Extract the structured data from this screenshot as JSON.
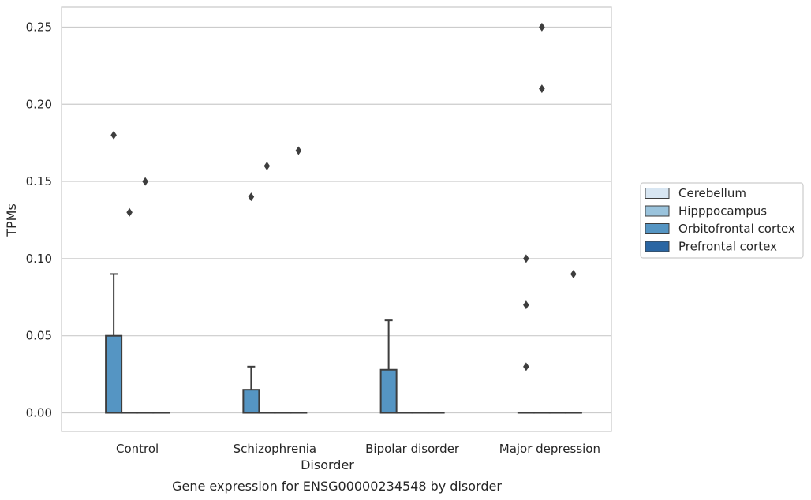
{
  "chart_data": {
    "type": "boxplot",
    "title": "Gene expression for ENSG00000234548 by disorder",
    "xlabel": "Disorder",
    "ylabel": "TPMs",
    "ylim": [
      -0.012,
      0.263
    ],
    "yticks": [
      0.0,
      0.05,
      0.1,
      0.15,
      0.2,
      0.25
    ],
    "ytick_labels": [
      "0.00",
      "0.05",
      "0.10",
      "0.15",
      "0.20",
      "0.25"
    ],
    "grid": "horizontal",
    "legend_position": "right",
    "categories": [
      "Control",
      "Schizophrenia",
      "Bipolar disorder",
      "Major depression"
    ],
    "series": [
      {
        "name": "Cerebellum",
        "color": "#d8e6f2",
        "boxes": [
          {
            "category": "Control",
            "q1": 0,
            "median": 0,
            "q3": 0,
            "whisker_low": 0,
            "whisker_high": 0,
            "outliers": []
          },
          {
            "category": "Schizophrenia",
            "q1": 0,
            "median": 0,
            "q3": 0,
            "whisker_low": 0,
            "whisker_high": 0,
            "outliers": [
              0.17
            ]
          },
          {
            "category": "Bipolar disorder",
            "q1": 0,
            "median": 0,
            "q3": 0,
            "whisker_low": 0,
            "whisker_high": 0,
            "outliers": []
          },
          {
            "category": "Major depression",
            "q1": 0,
            "median": 0,
            "q3": 0,
            "whisker_low": 0,
            "whisker_high": 0,
            "outliers": [
              0.09
            ]
          }
        ]
      },
      {
        "name": "Hipppocampus",
        "color": "#9ac3dc",
        "boxes": [
          {
            "category": "Control",
            "q1": 0,
            "median": 0,
            "q3": 0,
            "whisker_low": 0,
            "whisker_high": 0,
            "outliers": [
              0.13
            ]
          },
          {
            "category": "Schizophrenia",
            "q1": 0,
            "median": 0,
            "q3": 0,
            "whisker_low": 0,
            "whisker_high": 0,
            "outliers": [
              0.16
            ]
          },
          {
            "category": "Bipolar disorder",
            "q1": 0,
            "median": 0,
            "q3": 0,
            "whisker_low": 0,
            "whisker_high": 0,
            "outliers": []
          },
          {
            "category": "Major depression",
            "q1": 0,
            "median": 0,
            "q3": 0,
            "whisker_low": 0,
            "whisker_high": 0,
            "outliers": [
              0.25,
              0.21
            ]
          }
        ]
      },
      {
        "name": "Orbitofrontal cortex",
        "color": "#5595c3",
        "boxes": [
          {
            "category": "Control",
            "q1": 0,
            "median": 0,
            "q3": 0.05,
            "whisker_low": 0,
            "whisker_high": 0.09,
            "outliers": [
              0.18
            ]
          },
          {
            "category": "Schizophrenia",
            "q1": 0,
            "median": 0,
            "q3": 0.015,
            "whisker_low": 0,
            "whisker_high": 0.03,
            "outliers": [
              0.14
            ]
          },
          {
            "category": "Bipolar disorder",
            "q1": 0,
            "median": 0,
            "q3": 0.028,
            "whisker_low": 0,
            "whisker_high": 0.06,
            "outliers": []
          },
          {
            "category": "Major depression",
            "q1": 0,
            "median": 0,
            "q3": 0,
            "whisker_low": 0,
            "whisker_high": 0,
            "outliers": [
              0.1,
              0.07,
              0.03
            ]
          }
        ]
      },
      {
        "name": "Prefrontal cortex",
        "color": "#2a66a3",
        "boxes": [
          {
            "category": "Control",
            "q1": 0,
            "median": 0,
            "q3": 0,
            "whisker_low": 0,
            "whisker_high": 0,
            "outliers": [
              0.15
            ]
          },
          {
            "category": "Schizophrenia",
            "q1": 0,
            "median": 0,
            "q3": 0,
            "whisker_low": 0,
            "whisker_high": 0,
            "outliers": []
          },
          {
            "category": "Bipolar disorder",
            "q1": 0,
            "median": 0,
            "q3": 0,
            "whisker_low": 0,
            "whisker_high": 0,
            "outliers": []
          },
          {
            "category": "Major depression",
            "q1": 0,
            "median": 0,
            "q3": 0,
            "whisker_low": 0,
            "whisker_high": 0,
            "outliers": []
          }
        ]
      }
    ],
    "hue_order": [
      "Orbitofrontal cortex",
      "Hipppocampus",
      "Prefrontal cortex",
      "Cerebellum"
    ]
  }
}
